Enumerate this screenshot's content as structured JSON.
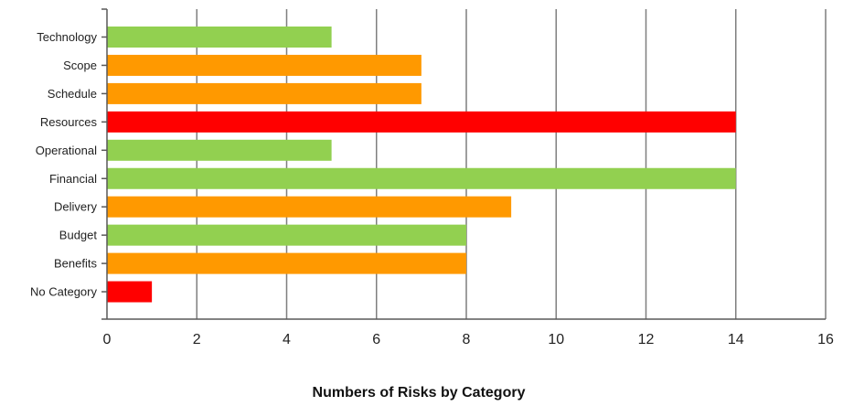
{
  "chart_data": {
    "type": "bar",
    "orientation": "horizontal",
    "title": "Numbers of Risks by Category",
    "xlabel": "",
    "ylabel": "",
    "categories": [
      "Technology",
      "Scope",
      "Schedule",
      "Resources",
      "Operational",
      "Financial",
      "Delivery",
      "Budget",
      "Benefits",
      "No Category"
    ],
    "values": [
      5,
      7,
      7,
      14,
      5,
      14,
      9,
      8,
      8,
      1
    ],
    "bar_colors": [
      "#92d050",
      "#ff9900",
      "#ff9900",
      "#ff0000",
      "#92d050",
      "#92d050",
      "#ff9900",
      "#92d050",
      "#ff9900",
      "#ff0000"
    ],
    "xlim": [
      0,
      16
    ],
    "xticks": [
      0,
      2,
      4,
      6,
      8,
      10,
      12,
      14,
      16
    ],
    "grid": "vertical",
    "legend": "none"
  }
}
